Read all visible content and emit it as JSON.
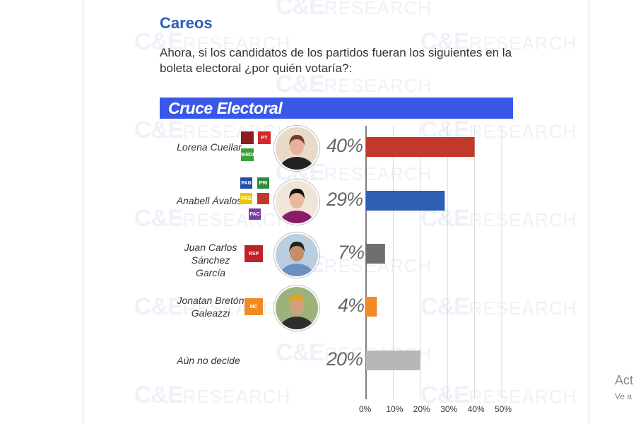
{
  "title": "Careos",
  "subtitle": "Ahora, si los candidatos de los partidos fueran los siguientes en la boleta electoral ¿por quién votaría?:",
  "banner": "Cruce Electoral",
  "watermark": {
    "brand": "C&E",
    "suffix": "RESEARCH"
  },
  "edge_text": {
    "line1": "Act",
    "line2": "Ve a"
  },
  "candidates": [
    {
      "name": "Lorena Cuellar",
      "value_label": "40%",
      "color": "#c0392b",
      "parties": [
        {
          "label": "",
          "color": "#8b1e1e",
          "icon": "morena-logo"
        },
        {
          "label": "PT",
          "color": "#d62828",
          "icon": "pt-logo"
        },
        {
          "label": "VERDE",
          "color": "#3aa13a",
          "icon": "verde-logo"
        }
      ]
    },
    {
      "name": "Anabell Ávalos",
      "value_label": "29%",
      "color": "#2f5fb3",
      "parties": [
        {
          "label": "PAN",
          "color": "#1f4fa8",
          "icon": "pan-logo"
        },
        {
          "label": "PRI",
          "color": "#2e8b3a",
          "icon": "pri-logo"
        },
        {
          "label": "PRD",
          "color": "#f2c400",
          "icon": "prd-logo"
        },
        {
          "label": "",
          "color": "#c0392b",
          "icon": "pes-logo"
        },
        {
          "label": "PAC",
          "color": "#7a3fa0",
          "icon": "pac-logo"
        }
      ]
    },
    {
      "name": "Juan Carlos Sánchez García",
      "value_label": "7%",
      "color": "#6f6f6f",
      "parties": [
        {
          "label": "RSP",
          "color": "#c0202a",
          "icon": "rsp-logo"
        }
      ]
    },
    {
      "name": "Jonatan Bretón Galeazzi",
      "value_label": "4%",
      "color": "#f08a24",
      "parties": [
        {
          "label": "MC",
          "color": "#f08a24",
          "icon": "movimiento-ciudadano-logo"
        }
      ]
    },
    {
      "name": "Aún no decide",
      "value_label": "20%",
      "color": "#b7b7b7",
      "parties": []
    }
  ],
  "chart_data": {
    "type": "bar",
    "orientation": "horizontal",
    "title": "Cruce Electoral",
    "categories": [
      "Lorena Cuellar",
      "Anabell Ávalos",
      "Juan Carlos Sánchez García",
      "Jonatan Bretón Galeazzi",
      "Aún no decide"
    ],
    "values": [
      40,
      29,
      7,
      4,
      20
    ],
    "value_labels": [
      "40%",
      "29%",
      "7%",
      "4%",
      "20%"
    ],
    "colors": [
      "#c0392b",
      "#2f5fb3",
      "#6f6f6f",
      "#f08a24",
      "#b7b7b7"
    ],
    "xlim": [
      0,
      50
    ],
    "xticks": [
      "0%",
      "10%",
      "20%",
      "30%",
      "40%",
      "50%"
    ],
    "grid": "vertical"
  }
}
